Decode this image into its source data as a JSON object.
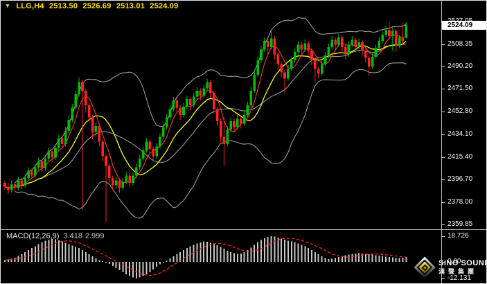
{
  "quote": {
    "symbol_period": "LLG,H4",
    "open": "2513.50",
    "high": "2526.69",
    "low": "2513.01",
    "close": "2524.09",
    "dropdown_icon": "down-triangle"
  },
  "price_axis": {
    "current": "2524.09"
  },
  "macd": {
    "label_name": "MACD(12,26,9)",
    "value_main": "3.418",
    "value_signal": "2.999"
  },
  "logo": {
    "line1": "SiNO SOUND",
    "line2": "漢聲集團"
  },
  "colors": {
    "background": "#000000",
    "quote_text": "#ffe400",
    "candle_up": "#00c000",
    "candle_down": "#ff2222",
    "bollinger": "#9a9a9a",
    "ma_fast": "#ff3535",
    "ma_slow": "#ffff00",
    "macd_histogram": "#c6c6c6",
    "macd_signal": "#ff2525",
    "axis_text": "#f4f4f4",
    "current_price_bg": "#ffffff"
  },
  "chart_data": {
    "type": "candlestick",
    "title": "LLG,H4",
    "legend_position": "none",
    "grid": false,
    "price_panel": {
      "axis_ticks": [
        2527.05,
        2508.35,
        2490.2,
        2471.5,
        2452.8,
        2434.1,
        2415.4,
        2396.7,
        2378.0,
        2359.85
      ],
      "ylim": [
        2356,
        2537
      ],
      "current_price": 2524.09,
      "overlays": [
        {
          "name": "bollinger-bands",
          "period": 20,
          "deviation": 2,
          "color": "#9a9a9a"
        },
        {
          "name": "ma-fast",
          "period": 5,
          "color": "#ff3535"
        },
        {
          "name": "ma-slow",
          "period": 12,
          "color": "#ffff00"
        }
      ],
      "candles_ohlc": [
        [
          2394,
          2396,
          2388,
          2391
        ],
        [
          2391,
          2394,
          2385,
          2388
        ],
        [
          2388,
          2396,
          2386,
          2393
        ],
        [
          2393,
          2395,
          2387,
          2390
        ],
        [
          2390,
          2399,
          2388,
          2396
        ],
        [
          2396,
          2398,
          2389,
          2392
        ],
        [
          2392,
          2401,
          2390,
          2398
        ],
        [
          2398,
          2407,
          2396,
          2404
        ],
        [
          2404,
          2406,
          2397,
          2400
        ],
        [
          2400,
          2410,
          2398,
          2407
        ],
        [
          2407,
          2415,
          2405,
          2412
        ],
        [
          2412,
          2414,
          2403,
          2406
        ],
        [
          2406,
          2417,
          2404,
          2414
        ],
        [
          2414,
          2423,
          2412,
          2420
        ],
        [
          2420,
          2422,
          2411,
          2415
        ],
        [
          2415,
          2426,
          2413,
          2423
        ],
        [
          2423,
          2434,
          2421,
          2431
        ],
        [
          2431,
          2433,
          2422,
          2426
        ],
        [
          2426,
          2440,
          2424,
          2437
        ],
        [
          2437,
          2449,
          2435,
          2446
        ],
        [
          2446,
          2459,
          2444,
          2456
        ],
        [
          2456,
          2470,
          2454,
          2467
        ],
        [
          2467,
          2481,
          2465,
          2477
        ],
        [
          2477,
          2479,
          2372,
          2470
        ],
        [
          2470,
          2472,
          2452,
          2458
        ],
        [
          2458,
          2460,
          2444,
          2448
        ],
        [
          2448,
          2450,
          2430,
          2436
        ],
        [
          2436,
          2444,
          2432,
          2441
        ],
        [
          2441,
          2443,
          2424,
          2428
        ],
        [
          2428,
          2430,
          2412,
          2416
        ],
        [
          2416,
          2418,
          2362,
          2408
        ],
        [
          2408,
          2410,
          2394,
          2398
        ],
        [
          2398,
          2400,
          2388,
          2392
        ],
        [
          2392,
          2399,
          2389,
          2396
        ],
        [
          2396,
          2398,
          2386,
          2390
        ],
        [
          2390,
          2398,
          2388,
          2395
        ],
        [
          2395,
          2403,
          2393,
          2400
        ],
        [
          2400,
          2402,
          2390,
          2394
        ],
        [
          2394,
          2403,
          2392,
          2400
        ],
        [
          2400,
          2410,
          2398,
          2407
        ],
        [
          2407,
          2417,
          2405,
          2414
        ],
        [
          2414,
          2424,
          2412,
          2421
        ],
        [
          2421,
          2431,
          2419,
          2428
        ],
        [
          2428,
          2430,
          2418,
          2422
        ],
        [
          2422,
          2424,
          2412,
          2416
        ],
        [
          2416,
          2427,
          2414,
          2424
        ],
        [
          2424,
          2435,
          2422,
          2432
        ],
        [
          2432,
          2443,
          2430,
          2440
        ],
        [
          2440,
          2451,
          2438,
          2448
        ],
        [
          2448,
          2458,
          2446,
          2455
        ],
        [
          2455,
          2465,
          2453,
          2462
        ],
        [
          2462,
          2464,
          2452,
          2456
        ],
        [
          2456,
          2458,
          2446,
          2450
        ],
        [
          2450,
          2460,
          2448,
          2457
        ],
        [
          2457,
          2466,
          2455,
          2463
        ],
        [
          2463,
          2465,
          2454,
          2458
        ],
        [
          2458,
          2468,
          2456,
          2465
        ],
        [
          2465,
          2473,
          2463,
          2470
        ],
        [
          2470,
          2472,
          2462,
          2466
        ],
        [
          2466,
          2475,
          2464,
          2472
        ],
        [
          2472,
          2480,
          2470,
          2477
        ],
        [
          2477,
          2479,
          2464,
          2468
        ],
        [
          2468,
          2470,
          2451,
          2455
        ],
        [
          2455,
          2457,
          2441,
          2445
        ],
        [
          2445,
          2447,
          2428,
          2432
        ],
        [
          2432,
          2448,
          2408,
          2426
        ],
        [
          2426,
          2441,
          2424,
          2438
        ],
        [
          2438,
          2448,
          2436,
          2445
        ],
        [
          2445,
          2447,
          2436,
          2440
        ],
        [
          2440,
          2450,
          2438,
          2447
        ],
        [
          2447,
          2449,
          2439,
          2443
        ],
        [
          2443,
          2453,
          2441,
          2450
        ],
        [
          2450,
          2461,
          2448,
          2458
        ],
        [
          2458,
          2473,
          2456,
          2470
        ],
        [
          2470,
          2486,
          2468,
          2483
        ],
        [
          2483,
          2498,
          2481,
          2495
        ],
        [
          2495,
          2507,
          2493,
          2504
        ],
        [
          2504,
          2514,
          2502,
          2511
        ],
        [
          2511,
          2513,
          2500,
          2506
        ],
        [
          2506,
          2520,
          2504,
          2513
        ],
        [
          2513,
          2515,
          2496,
          2500
        ],
        [
          2500,
          2502,
          2488,
          2492
        ],
        [
          2492,
          2494,
          2481,
          2485
        ],
        [
          2485,
          2487,
          2468,
          2480
        ],
        [
          2480,
          2491,
          2478,
          2488
        ],
        [
          2488,
          2498,
          2486,
          2495
        ],
        [
          2495,
          2505,
          2493,
          2502
        ],
        [
          2502,
          2511,
          2500,
          2508
        ],
        [
          2508,
          2510,
          2500,
          2504
        ],
        [
          2504,
          2512,
          2502,
          2509
        ],
        [
          2509,
          2511,
          2499,
          2503
        ],
        [
          2503,
          2505,
          2491,
          2495
        ],
        [
          2495,
          2497,
          2477,
          2488
        ],
        [
          2488,
          2490,
          2480,
          2484
        ],
        [
          2484,
          2495,
          2482,
          2492
        ],
        [
          2492,
          2502,
          2490,
          2499
        ],
        [
          2499,
          2509,
          2497,
          2506
        ],
        [
          2506,
          2515,
          2504,
          2512
        ],
        [
          2512,
          2514,
          2504,
          2508
        ],
        [
          2508,
          2517,
          2506,
          2514
        ],
        [
          2514,
          2516,
          2502,
          2506
        ],
        [
          2506,
          2508,
          2496,
          2500
        ],
        [
          2500,
          2511,
          2498,
          2508
        ],
        [
          2508,
          2515,
          2506,
          2512
        ],
        [
          2512,
          2514,
          2502,
          2506
        ],
        [
          2506,
          2513,
          2504,
          2510
        ],
        [
          2510,
          2512,
          2499,
          2503
        ],
        [
          2503,
          2505,
          2493,
          2497
        ],
        [
          2497,
          2499,
          2482,
          2490
        ],
        [
          2490,
          2501,
          2488,
          2498
        ],
        [
          2498,
          2508,
          2496,
          2505
        ],
        [
          2505,
          2514,
          2503,
          2511
        ],
        [
          2511,
          2519,
          2509,
          2516
        ],
        [
          2516,
          2524,
          2514,
          2520
        ],
        [
          2520,
          2527,
          2512,
          2515
        ],
        [
          2515,
          2522,
          2503,
          2519
        ],
        [
          2519,
          2521,
          2502,
          2507
        ],
        [
          2507,
          2516,
          2505,
          2514
        ],
        [
          2514,
          2526,
          2508,
          2511
        ],
        [
          2513.5,
          2526.69,
          2513.01,
          2524.09
        ]
      ]
    },
    "macd_panel": {
      "label": "MACD(12,26,9)",
      "params": [
        12,
        26,
        9
      ],
      "signal_period": 9,
      "axis_ticks": [
        18.726,
        0.0,
        -12.131
      ],
      "current_macd": 3.418,
      "current_signal": 2.999,
      "histogram": [
        1.2,
        1.8,
        2.4,
        3.0,
        4.2,
        5.5,
        7.0,
        8.5,
        10.0,
        11.5,
        13.0,
        14.5,
        15.5,
        16.2,
        16.8,
        16.5,
        15.8,
        15.0,
        14.0,
        13.0,
        12.0,
        11.0,
        10.0,
        8.5,
        7.0,
        5.5,
        4.0,
        2.5,
        1.2,
        0.4,
        -0.5,
        -1.5,
        -3.0,
        -4.5,
        -6.0,
        -7.5,
        -9.0,
        -10.5,
        -11.5,
        -12.1,
        -11.5,
        -10.5,
        -9.0,
        -7.5,
        -5.5,
        -3.5,
        -1.8,
        -0.5,
        0.8,
        2.5,
        4.0,
        5.5,
        7.0,
        8.5,
        10.0,
        11.5,
        12.5,
        13.5,
        14.2,
        15.0,
        14.6,
        14.0,
        13.2,
        12.2,
        11.0,
        9.5,
        8.0,
        7.0,
        6.2,
        5.8,
        6.0,
        7.0,
        8.5,
        10.5,
        12.5,
        14.5,
        16.0,
        17.3,
        18.2,
        18.726,
        18.4,
        17.8,
        17.0,
        16.2,
        15.5,
        15.0,
        14.3,
        13.5,
        12.5,
        11.3,
        10.0,
        8.5,
        7.0,
        5.5,
        4.0,
        2.8,
        2.0,
        2.2,
        2.8,
        3.5,
        4.2,
        4.8,
        5.4,
        5.8,
        6.1,
        6.2,
        6.1,
        5.9,
        5.6,
        5.4,
        4.8,
        4.5,
        4.2,
        3.9,
        3.6,
        3.3,
        3.0,
        2.8,
        3.0,
        3.418
      ]
    }
  }
}
